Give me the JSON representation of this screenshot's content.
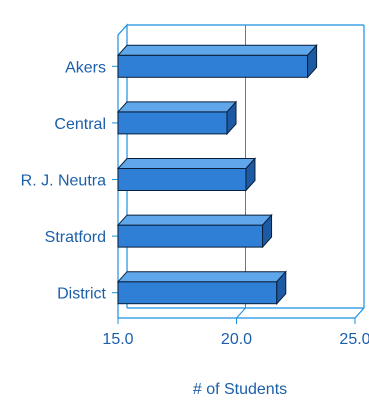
{
  "chart_data": {
    "type": "bar",
    "orientation": "horizontal",
    "style": "3d",
    "categories": [
      "Akers",
      "Central",
      "R. J. Neutra",
      "Stratford",
      "District"
    ],
    "values": [
      23.0,
      19.6,
      20.4,
      21.1,
      21.7
    ],
    "xlim": [
      15.0,
      25.0
    ],
    "xticks": [
      "15.0",
      "20.0",
      "25.0"
    ],
    "xlabel": "# of Students",
    "ylabel": "",
    "title": "",
    "grid": "vertical",
    "colors": {
      "bar_front": "#2f7fd6",
      "bar_top": "#5fa6ea",
      "bar_side": "#1d5aa3",
      "bar_outline": "#0a1f3a",
      "axis": "#1b8fe0",
      "text": "#1b5faa"
    }
  }
}
